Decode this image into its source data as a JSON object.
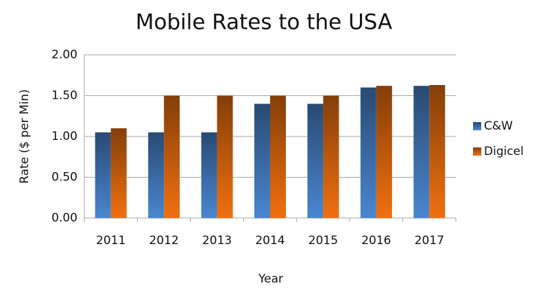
{
  "chart_data": {
    "type": "bar",
    "title": "Mobile Rates to the USA",
    "x_label": "Year",
    "y_label": "Rate ($ per Min)",
    "categories": [
      "2011",
      "2012",
      "2013",
      "2014",
      "2015",
      "2016",
      "2017"
    ],
    "series": [
      {
        "name": "C&W",
        "color": "#4a86d0",
        "values": [
          1.05,
          1.05,
          1.05,
          1.4,
          1.4,
          1.6,
          1.62
        ]
      },
      {
        "name": "Digicel",
        "color": "#f07010",
        "values": [
          1.1,
          1.5,
          1.5,
          1.5,
          1.5,
          1.62,
          1.63
        ]
      }
    ],
    "ylim": [
      0,
      2
    ],
    "yticks": [
      {
        "value": 0,
        "label": "0.00"
      },
      {
        "value": 0.5,
        "label": "0.50"
      },
      {
        "value": 1,
        "label": "1.00"
      },
      {
        "value": 1.5,
        "label": "1.50"
      },
      {
        "value": 2,
        "label": "2.00"
      }
    ],
    "grid": true,
    "legend": "right"
  }
}
